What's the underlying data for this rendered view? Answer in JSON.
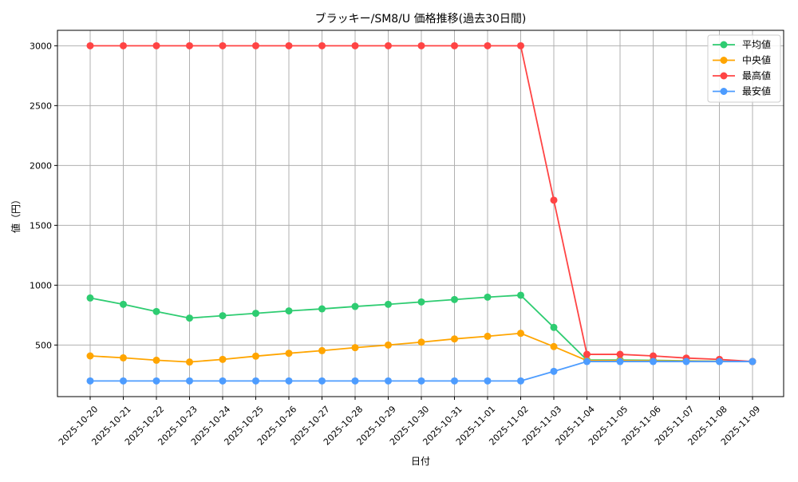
{
  "chart_data": {
    "type": "line",
    "title": "ブラッキー/SM8/U 価格推移(過去30日間)",
    "xlabel": "日付",
    "ylabel": "値（円）",
    "ylim": [
      69,
      3129
    ],
    "yticks": [
      500,
      1000,
      1500,
      2000,
      2500,
      3000
    ],
    "grid": true,
    "legend_position": "top-right",
    "categories": [
      "2025-10-20",
      "2025-10-21",
      "2025-10-22",
      "2025-10-23",
      "2025-10-24",
      "2025-10-25",
      "2025-10-26",
      "2025-10-27",
      "2025-10-28",
      "2025-10-29",
      "2025-10-30",
      "2025-10-31",
      "2025-11-01",
      "2025-11-02",
      "2025-11-03",
      "2025-11-04",
      "2025-11-05",
      "2025-11-06",
      "2025-11-07",
      "2025-11-08",
      "2025-11-09"
    ],
    "series": [
      {
        "name": "平均値",
        "color": "#2ecc71",
        "values": [
          893,
          840,
          780,
          725,
          745,
          765,
          785,
          802,
          822,
          840,
          860,
          880,
          900,
          916,
          647,
          375,
          375,
          372,
          368,
          365,
          362
        ]
      },
      {
        "name": "中央値",
        "color": "#ffa500",
        "values": [
          409,
          393,
          373,
          358,
          380,
          407,
          431,
          453,
          478,
          500,
          524,
          551,
          573,
          598,
          487,
          370,
          370,
          368,
          366,
          364,
          362
        ]
      },
      {
        "name": "最高値",
        "color": "#ff4444",
        "values": [
          3000,
          3000,
          3000,
          3000,
          3000,
          3000,
          3000,
          3000,
          3000,
          3000,
          3000,
          3000,
          3000,
          3000,
          1710,
          422,
          422,
          409,
          391,
          380,
          362
        ]
      },
      {
        "name": "最安値",
        "color": "#4d9cff",
        "values": [
          200,
          200,
          200,
          200,
          200,
          200,
          200,
          200,
          200,
          200,
          200,
          200,
          200,
          200,
          280,
          362,
          362,
          362,
          362,
          362,
          362
        ]
      }
    ]
  }
}
